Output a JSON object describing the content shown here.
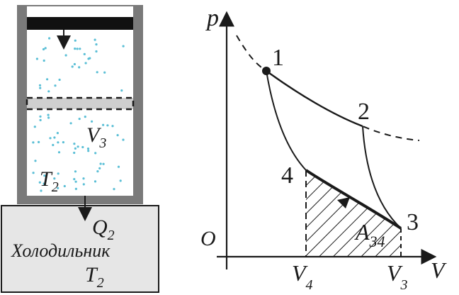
{
  "cylinder": {
    "volume_label": "V",
    "volume_sub": "3",
    "temp_label": "T",
    "temp_sub": "2"
  },
  "cooler": {
    "heat_label": "Q",
    "heat_sub": "2",
    "name": "Холодильник",
    "temp_label": "T",
    "temp_sub": "2"
  },
  "graph": {
    "p_axis": "p",
    "v_axis": "V",
    "origin": "O",
    "point_1": "1",
    "point_2": "2",
    "point_3": "3",
    "point_4": "4",
    "work_label": "A",
    "work_sub": "34",
    "v4_label": "V",
    "v4_sub": "4",
    "v3_label": "V",
    "v3_sub": "3"
  },
  "colors": {
    "wall": "#7a7a7a",
    "gas_dots": "#5bbfd6",
    "cooler_fill": "#e6e6e6",
    "piston_old": "#cfcfcf",
    "ink": "#1a1a1a"
  }
}
